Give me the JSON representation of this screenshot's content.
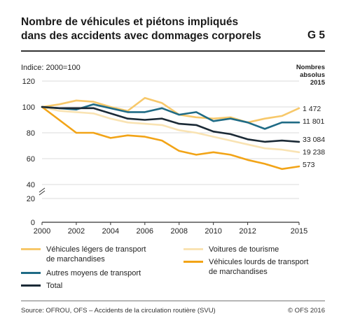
{
  "header": {
    "title_line1": "Nombre de véhicules et piétons impliqués",
    "title_line2": "dans des accidents avec dommages corporels",
    "graph_number": "G 5"
  },
  "unit_label": "Indice: 2000=100",
  "abs_header": [
    "Nombres",
    "absolus",
    "2015"
  ],
  "footer": {
    "source": "Source: OFROU, OFS – Accidents de la circulation routière (SVU)",
    "copyright": "© OFS 2016"
  },
  "colors": {
    "light_goods": "#f7c86a",
    "cars": "#f9e3b3",
    "other": "#1f6b85",
    "total": "#1b2a36",
    "heavy_goods": "#f2a417"
  },
  "chart_data": {
    "type": "line",
    "x": [
      2000,
      2001,
      2002,
      2003,
      2004,
      2005,
      2006,
      2007,
      2008,
      2009,
      2010,
      2011,
      2012,
      2013,
      2014,
      2015
    ],
    "xticks": [
      "2000",
      "2002",
      "2004",
      "2006",
      "2008",
      "2010",
      "2012",
      "2015"
    ],
    "yticks": [
      "0",
      "20",
      "40",
      "60",
      "80",
      "100",
      "120"
    ],
    "ylim": [
      0,
      120
    ],
    "axis_break": [
      20,
      40
    ],
    "grid": "horizontal",
    "legend_position": "bottom",
    "series": [
      {
        "key": "light_goods",
        "name": "Véhicules légers de transport de marchandises",
        "name_lines": [
          "Véhicules légers de transport",
          "de marchandises"
        ],
        "values": [
          100,
          102,
          105,
          104,
          100,
          97,
          107,
          103,
          94,
          92,
          91,
          92,
          88,
          91,
          93,
          99
        ],
        "end_label": "1 472"
      },
      {
        "key": "cars",
        "name": "Voitures de tourisme",
        "name_lines": [
          "Voitures de tourisme"
        ],
        "values": [
          100,
          97,
          96,
          95,
          91,
          88,
          87,
          86,
          82,
          80,
          77,
          74,
          71,
          68,
          67,
          65
        ],
        "end_label": "19 238"
      },
      {
        "key": "other",
        "name": "Autres moyens de transport",
        "name_lines": [
          "Autres moyens de transport"
        ],
        "values": [
          100,
          99,
          98,
          102,
          99,
          96,
          96,
          99,
          94,
          96,
          89,
          91,
          88,
          83,
          88,
          88
        ],
        "end_label": "11 801"
      },
      {
        "key": "total",
        "name": "Total",
        "name_lines": [
          "Total"
        ],
        "values": [
          100,
          99,
          99,
          99,
          95,
          91,
          90,
          91,
          87,
          86,
          81,
          79,
          75,
          73,
          74,
          73
        ],
        "end_label": "33 084"
      },
      {
        "key": "heavy_goods",
        "name": "Véhicules lourds de transport de marchandises",
        "name_lines": [
          "Véhicules lourds de transport",
          "de marchandises"
        ],
        "values": [
          100,
          90,
          80,
          80,
          76,
          78,
          77,
          74,
          66,
          63,
          65,
          63,
          59,
          56,
          52,
          54
        ],
        "end_label": "573"
      }
    ]
  }
}
